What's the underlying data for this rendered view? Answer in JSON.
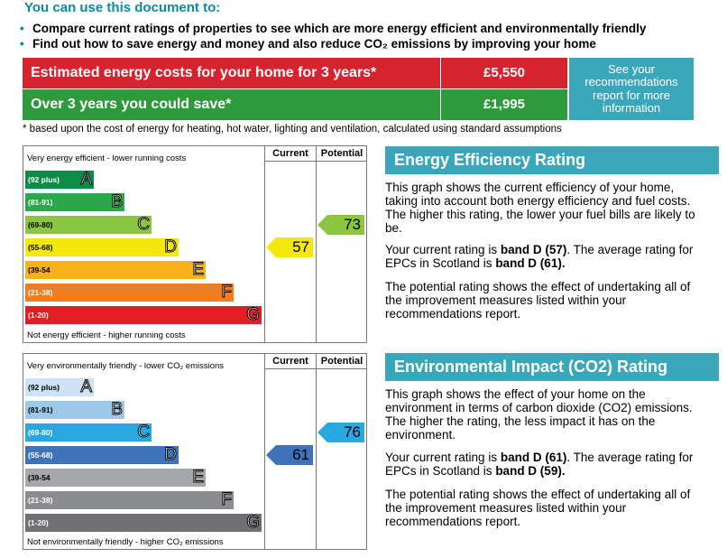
{
  "header": {
    "title": "You can use this document to:",
    "bullets": [
      "Compare current ratings of properties to see which are more energy efficient and environmentally friendly",
      "Find out how to save energy and money and also reduce CO₂ emissions by improving your home"
    ]
  },
  "costs": {
    "estimated_label": "Estimated energy costs for your home for 3 years*",
    "estimated_value": "£5,550",
    "save_label": "Over 3 years you could save*",
    "save_value": "£1,995",
    "see_link": "See your recommendations report for more information",
    "footnote": "* based upon the cost of energy for heating, hot water, lighting and ventilation, calculated using standard assumptions"
  },
  "energy_chart": {
    "col_current": "Current",
    "col_potential": "Potential",
    "top_label": "Very energy efficient - lower running costs",
    "bottom_label": "Not energy efficient - higher running costs",
    "bands": [
      {
        "range": "(92 plus)",
        "letter": "A",
        "color": "#0f8a47"
      },
      {
        "range": "(81-91)",
        "letter": "B",
        "color": "#2aa84a"
      },
      {
        "range": "(69-80)",
        "letter": "C",
        "color": "#8cc53f"
      },
      {
        "range": "(55-68)",
        "letter": "D",
        "color": "#f4e70e"
      },
      {
        "range": "(39-54",
        "letter": "E",
        "color": "#f6b11c"
      },
      {
        "range": "(21-38)",
        "letter": "F",
        "color": "#ef7d22"
      },
      {
        "range": "(1-20)",
        "letter": "G",
        "color": "#e31d23"
      }
    ],
    "current": "57",
    "current_color": "#f4e70e",
    "potential": "73",
    "potential_color": "#8cc53f"
  },
  "env_chart": {
    "col_current": "Current",
    "col_potential": "Potential",
    "top_label": "Very environmentally friendly - lower CO₂ emissions",
    "bottom_label": "Not environmentally friendly - higher CO₂ emissions",
    "bands": [
      {
        "range": "(92 plus)",
        "letter": "A",
        "color": "#cde3f5"
      },
      {
        "range": "(81-91)",
        "letter": "B",
        "color": "#9cc8ea"
      },
      {
        "range": "(69-80)",
        "letter": "C",
        "color": "#29a8e0"
      },
      {
        "range": "(55-68)",
        "letter": "D",
        "color": "#3f73b9"
      },
      {
        "range": "(39-54",
        "letter": "E",
        "color": "#a5a7aa"
      },
      {
        "range": "(21-38)",
        "letter": "F",
        "color": "#8a8c8f"
      },
      {
        "range": "(1-20)",
        "letter": "G",
        "color": "#6e7073"
      }
    ],
    "current": "61",
    "current_color": "#3f73b9",
    "potential": "76",
    "potential_color": "#29a8e0"
  },
  "energy_panel": {
    "title": "Energy Efficiency Rating",
    "para1": "This graph shows the current efficiency of your home, taking into account both energy efficiency and fuel costs. The higher this rating, the lower your fuel bills are likely to be.",
    "para2_pre": "Your current rating is ",
    "para2_bold1": "band D (57)",
    "para2_mid": ". The average rating for EPCs in Scotland is ",
    "para2_bold2": "band D (61).",
    "para3": "The potential rating shows the effect of undertaking all of the improvement measures listed within your recommendations report."
  },
  "env_panel": {
    "title": "Environmental Impact (CO2) Rating",
    "para1": "This graph shows the effect of your home on the environment in terms of carbon dioxide (CO2) emissions. The higher the rating, the less impact it has on the environment.",
    "para2_pre": "Your current rating is ",
    "para2_bold1": "band D (61)",
    "para2_mid": ". The average rating for EPCs in Scotland is ",
    "para2_bold2": "band D (59).",
    "para3": "The potential rating shows the effect of undertaking all of the improvement measures listed within your recommendations report."
  }
}
